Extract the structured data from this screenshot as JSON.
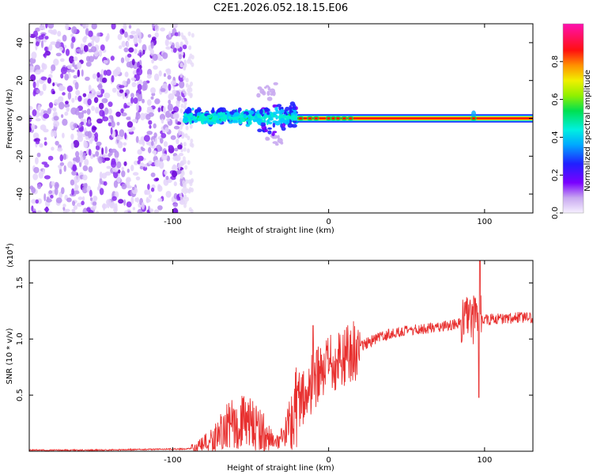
{
  "title": "C2E1.2026.052.18.15.E06",
  "colors": {
    "line": "#e8302f",
    "track": "#cc1030",
    "frame": "#000000"
  },
  "chart_data": [
    {
      "type": "heatmap",
      "title": "C2E1.2026.052.18.15.E06",
      "xlabel": "Height of straight line (km)",
      "ylabel": "Frequency (Hz)",
      "xlim": [
        -192,
        131
      ],
      "ylim": [
        -50,
        50
      ],
      "xticks": [
        -100,
        0,
        100
      ],
      "yticks": [
        -40,
        -20,
        0,
        20,
        40
      ],
      "colorbar": {
        "label": "Normalized spectral amplitude",
        "range": [
          0,
          1
        ],
        "ticks": [
          "0.0",
          "0.2",
          "0.4",
          "0.6",
          "0.8"
        ],
        "colormap": "rainbow: white-lavender, purple, blue, cyan, green, yellow, orange, red, magenta"
      },
      "regions": [
        {
          "name": "broadband noise",
          "x_range": [
            -192,
            -92
          ],
          "f_range": [
            -50,
            48
          ],
          "amplitude": 0.15
        },
        {
          "name": "emerging tone",
          "x_range": [
            -92,
            -20
          ],
          "f_range": [
            -15,
            20
          ],
          "amplitude": 0.3
        },
        {
          "name": "stable tone",
          "x_range": [
            -20,
            131
          ],
          "f_center": 0,
          "amplitude": 1.0
        }
      ]
    },
    {
      "type": "line",
      "xlabel": "Height of straight line (km)",
      "ylabel": "SNR (10 * v/v)",
      "scale_label": "(x10",
      "scale_exp": "4",
      "xlim": [
        -192,
        131
      ],
      "ylim": [
        0,
        1.7
      ],
      "xticks": [
        -100,
        0,
        100
      ],
      "yticks": [
        "0.5",
        "1.0",
        "1.5"
      ],
      "series": [
        {
          "name": "SNR",
          "x": [
            -192,
            -150,
            -100,
            -92,
            -85,
            -75,
            -65,
            -55,
            -45,
            -38,
            -32,
            -28,
            -24,
            -20,
            -15,
            -10,
            -5,
            0,
            10,
            20,
            30,
            40,
            50,
            60,
            70,
            80,
            90,
            95,
            100,
            110,
            120,
            131
          ],
          "values": [
            0.01,
            0.01,
            0.02,
            0.02,
            0.03,
            0.1,
            0.22,
            0.26,
            0.22,
            0.12,
            0.06,
            0.15,
            0.3,
            0.45,
            0.5,
            0.6,
            0.68,
            0.75,
            0.85,
            0.93,
            1.0,
            1.05,
            1.07,
            1.09,
            1.11,
            1.13,
            1.16,
            1.18,
            1.17,
            1.18,
            1.19,
            1.19
          ]
        }
      ]
    }
  ]
}
